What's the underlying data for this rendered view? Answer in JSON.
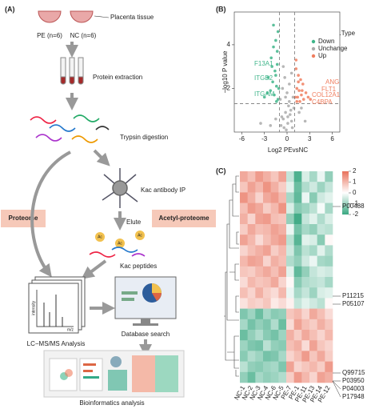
{
  "workflow": {
    "panel_label": "(A)",
    "placenta": "Placenta tissue",
    "pe": "PE (n=6)",
    "nc": "NC (n=6)",
    "protein_extraction": "Protein extraction",
    "trypsin": "Trypsin digestion",
    "antibody_ip": "Kac antibody IP",
    "elute": "Elute",
    "kac_peptides": "Kac peptides",
    "ac": "Ac",
    "proteome": "Proteome",
    "acetyl_proteome": "Acetyl-proteome",
    "intensity": "intensity",
    "mz": "m/z",
    "lcms": "LC−MS/MS Analysis",
    "database": "Database search",
    "bioinformatics": "Bioinformatics analysis"
  },
  "volcano": {
    "type": "scatter",
    "panel_label": "(B)",
    "x_label": "Log2 PEvsNC",
    "y_label": "−log10 P value",
    "xlim": [
      -7,
      7
    ],
    "ylim": [
      0,
      5.5
    ],
    "xticks": [
      -6,
      -3,
      0,
      3,
      6
    ],
    "yticks": [
      2,
      4
    ],
    "x_thresholds": [
      -1,
      1
    ],
    "y_threshold": 1.3,
    "legend_title": "Regulated.Type",
    "series": [
      {
        "name": "Down",
        "color": "#3fb58a",
        "x": [
          -1.2,
          -1.5,
          -1.8,
          -2.1,
          -1.3,
          -1.6,
          -2.5,
          -1.9,
          -1.4,
          -2.2,
          -1.7,
          -3.0,
          -1.2,
          -1.5,
          -2.0,
          -1.3,
          -1.8,
          -1.1,
          -2.6,
          -1.4
        ],
        "y": [
          4.6,
          4.2,
          3.9,
          3.4,
          3.1,
          2.8,
          2.5,
          2.3,
          2.1,
          1.9,
          1.7,
          1.6,
          1.5,
          2.6,
          3.0,
          3.7,
          4.9,
          2.0,
          1.8,
          1.4
        ]
      },
      {
        "name": "Unchange",
        "color": "#aaaaaa",
        "x": [
          -0.8,
          -0.5,
          -0.2,
          0.1,
          0.4,
          0.7,
          0.9,
          -0.9,
          -0.6,
          -0.3,
          0,
          0.3,
          0.6,
          0.8,
          -0.7,
          -0.4,
          -0.1,
          0.2,
          0.5,
          -1.5,
          1.6,
          -2.2,
          2.4,
          -0.5,
          0.3,
          0.6,
          -0.2,
          0.1,
          -3.5,
          1.9
        ],
        "y": [
          0.3,
          0.6,
          0.9,
          0.4,
          0.8,
          0.2,
          1.1,
          1.5,
          2.0,
          2.5,
          1.8,
          1.4,
          0.5,
          1.6,
          0.7,
          0.2,
          0.1,
          1.2,
          1.0,
          0.6,
          0.9,
          0.3,
          0.5,
          3.0,
          2.2,
          2.7,
          1.6,
          0.7,
          0.4,
          1.1
        ]
      },
      {
        "name": "Up",
        "color": "#f07e5f",
        "x": [
          1.2,
          1.5,
          1.8,
          2.1,
          1.3,
          1.6,
          2.5,
          1.9,
          1.4,
          2.2,
          1.7,
          3.1,
          1.2,
          1.5,
          2.0,
          1.1,
          2.8,
          1.3
        ],
        "y": [
          2.9,
          2.6,
          2.4,
          2.2,
          2.0,
          1.9,
          1.8,
          1.7,
          1.6,
          1.5,
          1.4,
          1.5,
          3.3,
          2.3,
          1.9,
          1.6,
          1.6,
          1.4
        ]
      }
    ],
    "down_genes": [
      "F13A1",
      "ITGB2",
      "ITGAM"
    ],
    "up_genes": [
      "ANG",
      "FLT1",
      "COL12A1",
      "C4BPA"
    ]
  },
  "heatmap": {
    "panel_label": "(C)",
    "columns": [
      "NC-1",
      "NC-2",
      "NC-3",
      "NC-4",
      "NC-6",
      "NC-5",
      "PE-7",
      "PE-1",
      "PE-11",
      "PE-13",
      "PE-14",
      "PE-12"
    ],
    "row_labels": [
      "P00488",
      "P11215",
      "P05107",
      "Q99715",
      "P03950",
      "P04003",
      "P17948"
    ],
    "colorbar": {
      "lim": [
        -2,
        2
      ],
      "ticks": [
        2,
        1,
        0,
        -1,
        -2
      ]
    },
    "values": [
      [
        1.2,
        0.9,
        1.4,
        1.1,
        0.8,
        1.3,
        -0.6,
        -1.8,
        -0.4,
        -0.9,
        -0.2,
        -1.1
      ],
      [
        0.8,
        1.3,
        1.0,
        1.5,
        1.1,
        0.7,
        -0.3,
        -1.5,
        -0.8,
        -0.5,
        -1.0,
        -0.6
      ],
      [
        1.5,
        1.1,
        0.6,
        1.2,
        1.4,
        1.0,
        -0.9,
        -1.6,
        -0.2,
        -1.2,
        -0.5,
        -0.3
      ],
      [
        0.9,
        1.4,
        1.2,
        0.7,
        1.0,
        1.5,
        -0.4,
        -1.2,
        -1.0,
        -0.7,
        -0.1,
        -0.9
      ],
      [
        1.1,
        0.6,
        1.3,
        1.4,
        0.9,
        0.8,
        -1.1,
        -1.9,
        -0.6,
        -0.3,
        -0.8,
        -0.4
      ],
      [
        0.7,
        1.2,
        0.9,
        1.0,
        1.3,
        1.1,
        -0.2,
        -1.4,
        -0.9,
        -1.1,
        -0.6,
        -0.7
      ],
      [
        1.3,
        1.0,
        0.5,
        0.9,
        1.2,
        1.4,
        -0.7,
        -1.7,
        -0.3,
        -0.4,
        -1.2,
        0.1
      ],
      [
        0.6,
        0.9,
        1.1,
        1.3,
        0.7,
        1.0,
        -0.5,
        -1.3,
        -0.7,
        -0.9,
        -0.3,
        -0.8
      ],
      [
        1.0,
        1.3,
        1.2,
        0.6,
        1.1,
        0.9,
        -0.8,
        -1.1,
        -0.5,
        -0.2,
        -0.9,
        -1.0
      ],
      [
        0.8,
        0.7,
        1.0,
        1.2,
        0.9,
        1.3,
        -0.3,
        -1.6,
        -1.1,
        -0.6,
        -0.4,
        -0.5
      ],
      [
        0.5,
        1.0,
        0.8,
        0.9,
        1.2,
        0.6,
        0.1,
        -1.2,
        -0.8,
        -0.7,
        -0.6,
        -0.9
      ],
      [
        0.9,
        0.6,
        1.1,
        0.7,
        0.5,
        1.0,
        -0.2,
        -0.9,
        -0.6,
        -1.0,
        -0.4,
        -0.3
      ],
      [
        0.4,
        0.7,
        0.6,
        0.8,
        0.3,
        0.5,
        0.2,
        -0.6,
        -0.3,
        -0.5,
        -0.7,
        0.1
      ],
      [
        -1.3,
        -1.0,
        -1.5,
        -0.9,
        -1.2,
        -1.1,
        0.8,
        1.0,
        0.6,
        1.2,
        0.9,
        0.5
      ],
      [
        -0.9,
        -1.4,
        -1.1,
        -1.3,
        -0.8,
        -1.5,
        0.5,
        1.3,
        0.9,
        0.7,
        1.1,
        0.8
      ],
      [
        -1.5,
        -1.1,
        -0.8,
        -1.2,
        -1.4,
        -1.0,
        1.1,
        0.7,
        1.2,
        0.9,
        0.6,
        1.0
      ],
      [
        -1.0,
        -1.3,
        -1.4,
        -0.7,
        -1.1,
        -1.2,
        0.9,
        1.1,
        0.5,
        1.3,
        0.8,
        0.6
      ],
      [
        -1.2,
        -0.8,
        -1.0,
        -1.4,
        -1.3,
        -0.9,
        0.6,
        0.9,
        1.4,
        0.8,
        1.2,
        0.7
      ],
      [
        -0.7,
        -1.1,
        -1.2,
        -1.0,
        -0.9,
        -1.3,
        1.3,
        0.6,
        0.8,
        1.0,
        0.7,
        1.4
      ],
      [
        -1.1,
        -1.5,
        -0.9,
        -1.1,
        -1.0,
        -0.8,
        0.7,
        1.4,
        1.0,
        0.6,
        1.3,
        1.1
      ]
    ]
  }
}
